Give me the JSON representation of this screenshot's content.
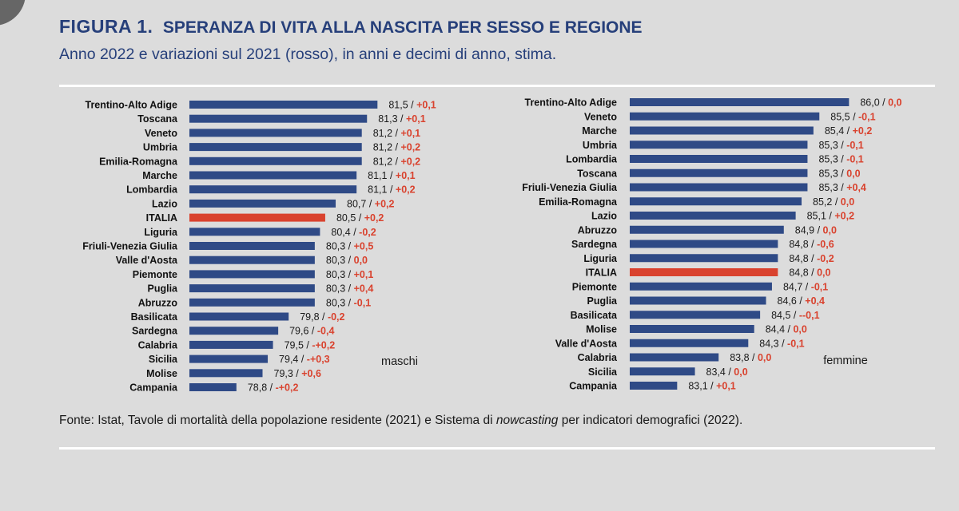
{
  "header": {
    "figure_label": "FIGURA 1.",
    "title": "SPERANZA DI VITA ALLA NASCITA PER SESSO E REGIONE",
    "subtitle": "Anno 2022 e variazioni sul 2021 (rosso), in anni e decimi di anno, stima."
  },
  "footer": {
    "source_prefix": "Fonte: Istat, Tavole di mortalità della popolazione residente (2021) e Sistema di ",
    "source_italic": "nowcasting",
    "source_suffix": " per indicatori demografici (2022)."
  },
  "colors": {
    "bar": "#2f4a86",
    "italia_bar": "#d9422e",
    "change_text": "#d9422e",
    "title_text": "#263f7a",
    "background": "#dcdcdc"
  },
  "chart_data": [
    {
      "type": "bar",
      "orientation": "horizontal",
      "annotation": "maschi",
      "highlight": "ITALIA",
      "categories": [
        "Trentino-Alto Adige",
        "Toscana",
        "Veneto",
        "Umbria",
        "Emilia-Romagna",
        "Marche",
        "Lombardia",
        "Lazio",
        "ITALIA",
        "Liguria",
        "Friuli-Venezia Giulia",
        "Valle d'Aosta",
        "Piemonte",
        "Puglia",
        "Abruzzo",
        "Basilicata",
        "Sardegna",
        "Calabria",
        "Sicilia",
        "Molise",
        "Campania"
      ],
      "values": [
        81.5,
        81.3,
        81.2,
        81.2,
        81.2,
        81.1,
        81.1,
        80.7,
        80.5,
        80.4,
        80.3,
        80.3,
        80.3,
        80.3,
        80.3,
        79.8,
        79.6,
        79.5,
        79.4,
        79.3,
        78.8
      ],
      "value_labels": [
        "81,5",
        "81,3",
        "81,2",
        "81,2",
        "81,2",
        "81,1",
        "81,1",
        "80,7",
        "80,5",
        "80,4",
        "80,3",
        "80,3",
        "80,3",
        "80,3",
        "80,3",
        "79,8",
        "79,6",
        "79,5",
        "79,4",
        "79,3",
        "78,8"
      ],
      "changes": [
        "+0,1",
        "+0,1",
        "+0,1",
        "+0,2",
        "+0,2",
        "+0,1",
        "+0,2",
        "+0,2",
        "+0,2",
        "-0,2",
        "+0,5",
        "0,0",
        "+0,1",
        "+0,4",
        "-0,1",
        "-0,2",
        "-0,4",
        "-+0,2",
        "-+0,3",
        "+0,6",
        "-+0,2"
      ],
      "separator": " / ",
      "xlim": [
        77.9,
        82.0
      ]
    },
    {
      "type": "bar",
      "orientation": "horizontal",
      "annotation": "femmine",
      "highlight": "ITALIA",
      "categories": [
        "Trentino-Alto Adige",
        "Veneto",
        "Marche",
        "Umbria",
        "Lombardia",
        "Toscana",
        "Friuli-Venezia Giulia",
        "Emilia-Romagna",
        "Lazio",
        "Abruzzo",
        "Sardegna",
        "Liguria",
        "ITALIA",
        "Piemonte",
        "Puglia",
        "Basilicata",
        "Molise",
        "Valle d'Aosta",
        "Calabria",
        "Sicilia",
        "Campania"
      ],
      "values": [
        86.0,
        85.5,
        85.4,
        85.3,
        85.3,
        85.3,
        85.3,
        85.2,
        85.1,
        84.9,
        84.8,
        84.8,
        84.8,
        84.7,
        84.6,
        84.5,
        84.4,
        84.3,
        83.8,
        83.4,
        83.1
      ],
      "value_labels": [
        "86,0",
        "85,5",
        "85,4",
        "85,3",
        "85,3",
        "85,3",
        "85,3",
        "85,2",
        "85,1",
        "84,9",
        "84,8",
        "84,8",
        "84,8",
        "84,7",
        "84,6",
        "84,5",
        "84,4",
        "84,3",
        "83,8",
        "83,4",
        "83,1"
      ],
      "changes": [
        "0,0",
        "-0,1",
        "+0,2",
        "-0,1",
        "-0,1",
        "0,0",
        "+0,4",
        "0,0",
        "+0,2",
        "0,0",
        "-0,6",
        "-0,2",
        "0,0",
        "-0,1",
        "+0,4",
        "--0,1",
        "0,0",
        "-0,1",
        "0,0",
        "0,0",
        "+0,1"
      ],
      "separator": " / ",
      "xlim": [
        82.3,
        86.4
      ]
    }
  ]
}
